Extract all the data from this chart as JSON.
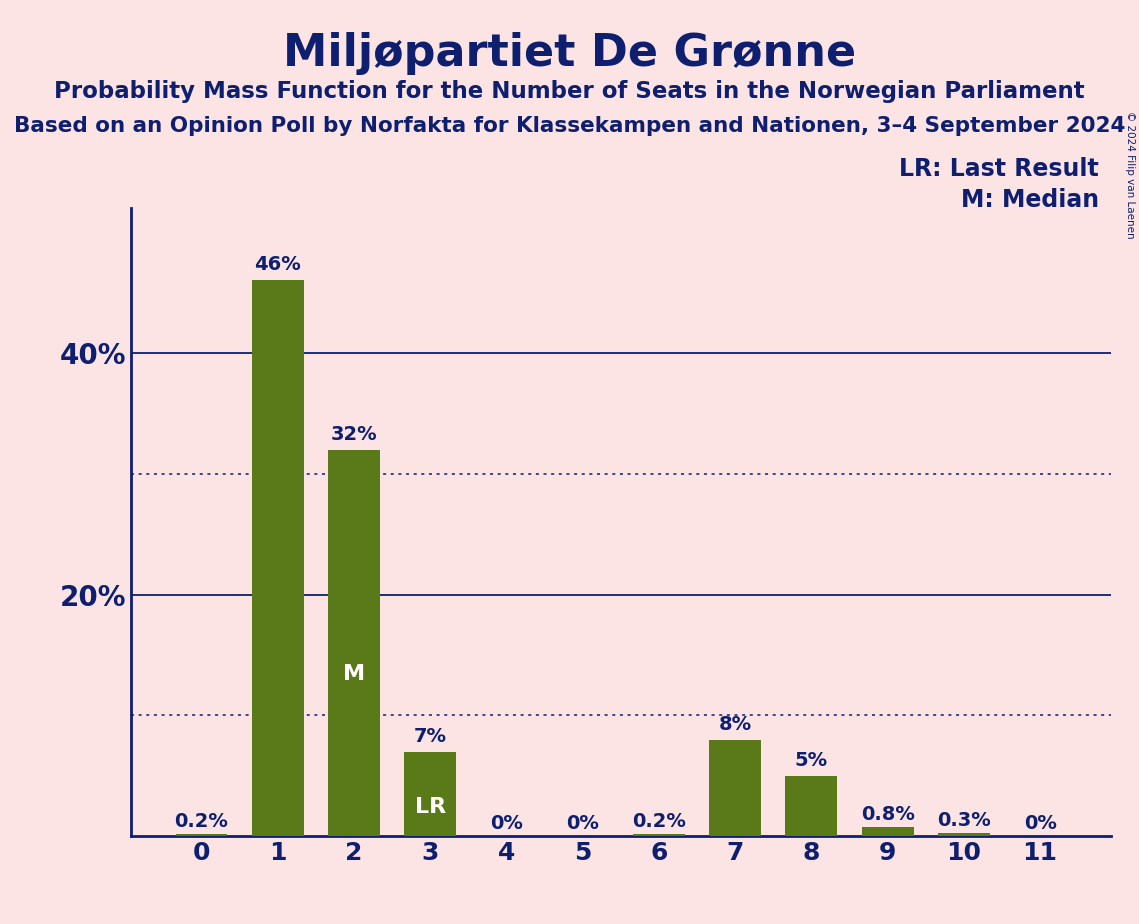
{
  "title": "Miljøpartiet De Grønne",
  "subtitle1": "Probability Mass Function for the Number of Seats in the Norwegian Parliament",
  "subtitle2": "Based on an Opinion Poll by Norfakta for Klassekampen and Nationen, 3–4 September 2024",
  "copyright": "© 2024 Filip van Laenen",
  "categories": [
    0,
    1,
    2,
    3,
    4,
    5,
    6,
    7,
    8,
    9,
    10,
    11
  ],
  "values": [
    0.2,
    46.0,
    32.0,
    7.0,
    0.0,
    0.0,
    0.2,
    8.0,
    5.0,
    0.8,
    0.3,
    0.0
  ],
  "bar_color": "#5a7a1a",
  "background_color": "#fce4e4",
  "text_color": "#0d1f6e",
  "grid_color": "#0d1f6e",
  "bar_labels": [
    "0.2%",
    "46%",
    "32%",
    "7%",
    "0%",
    "0%",
    "0.2%",
    "8%",
    "5%",
    "0.8%",
    "0.3%",
    "0%"
  ],
  "LR_bar": 3,
  "M_bar": 2,
  "LR_label": "LR",
  "M_label": "M",
  "legend_LR": "LR: Last Result",
  "legend_M": "M: Median",
  "ytick_positions": [
    20,
    40
  ],
  "ytick_labels": [
    "20%",
    "40%"
  ],
  "ylim": [
    0,
    52
  ],
  "dotted_lines": [
    10,
    30
  ],
  "solid_lines": [
    20,
    40
  ]
}
